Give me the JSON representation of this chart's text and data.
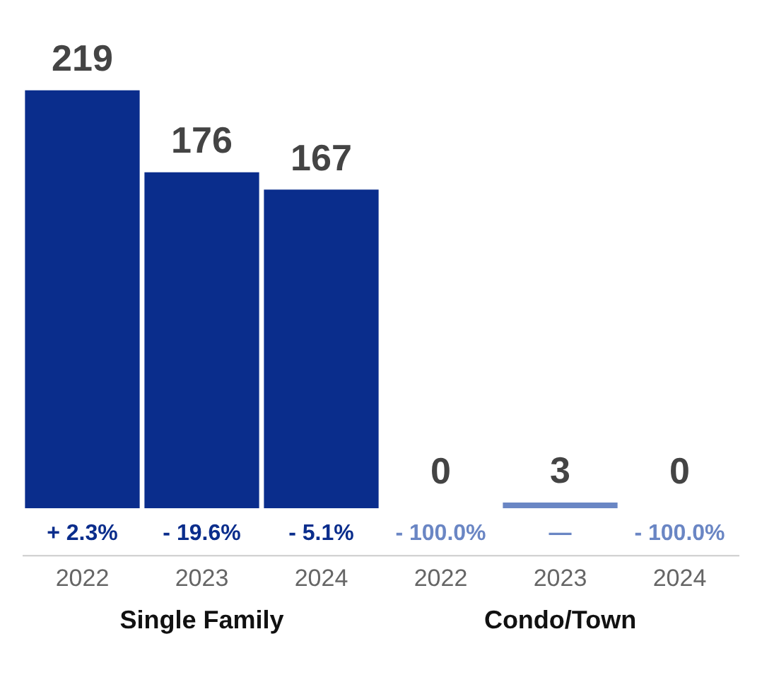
{
  "chart_data": {
    "type": "bar",
    "categories": [
      "2022",
      "2023",
      "2024",
      "2022",
      "2023",
      "2024"
    ],
    "values": [
      219,
      176,
      167,
      0,
      3,
      0
    ],
    "colors": [
      "#0a2d8c",
      "#0a2d8c",
      "#0a2d8c",
      "#6a86c4",
      "#6a86c4",
      "#6a86c4"
    ],
    "data_labels": true,
    "tick_labels": "x",
    "legend": false,
    "grid": false,
    "annotations": [
      "+ 2.3%",
      "- 19.6%",
      "- 5.1%",
      "- 100.0%",
      "—",
      "- 100.0%",
      "Single Family",
      "Condo/Town"
    ]
  }
}
